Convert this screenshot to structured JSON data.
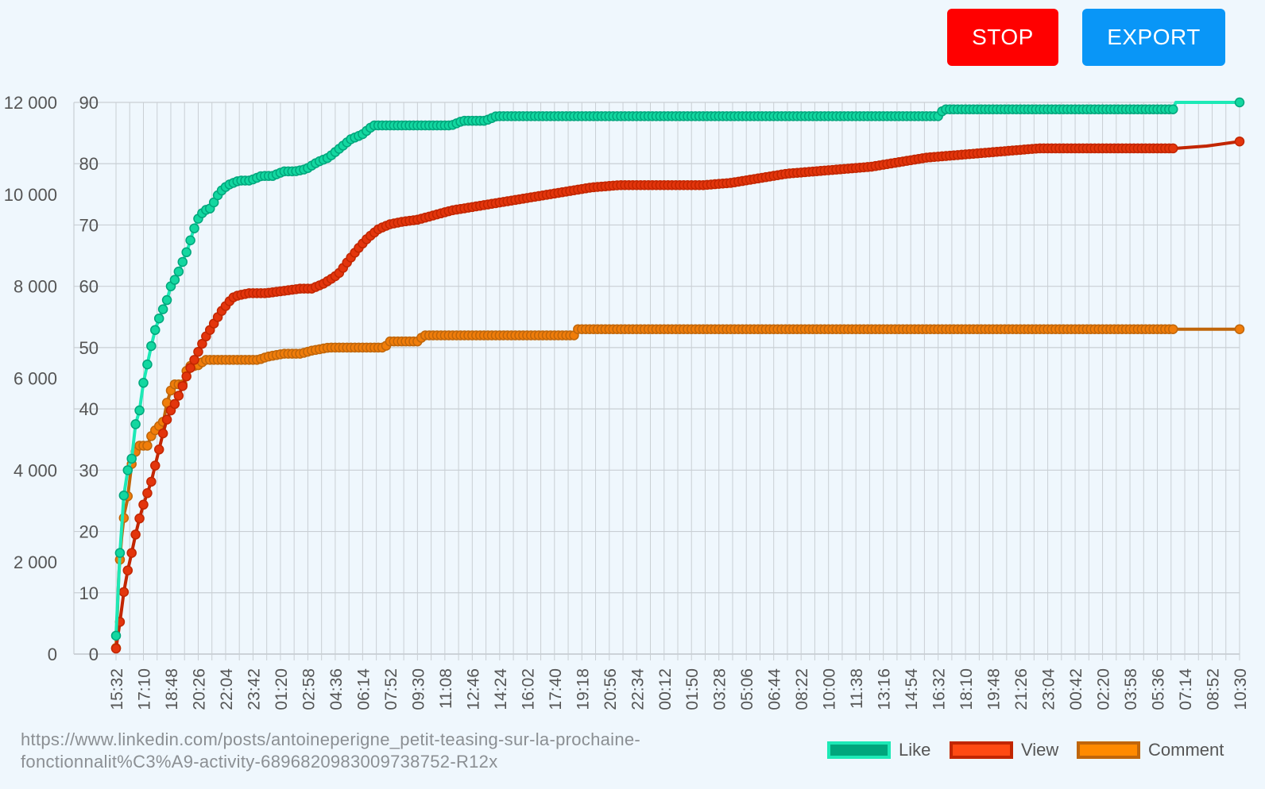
{
  "controls": {
    "stop_label": "STOP",
    "export_label": "EXPORT"
  },
  "footer": {
    "url": "https://www.linkedin.com/posts/antoineperigne_petit-teasing-sur-la-prochaine-fonctionnalit%C3%A9-activity-6896820983009738752-R12x"
  },
  "colors": {
    "like_line": "#1de9b6",
    "like_fill": "#00a67c",
    "like_point": "#13d7a0",
    "view_line": "#c22600",
    "view_fill": "#ff4a12",
    "view_point": "#e3350c",
    "comment_line": "#c0660a",
    "comment_fill": "#ff8a00",
    "comment_point": "#f07d0a",
    "stop_button": "#ff0000",
    "export_button": "#0996f7"
  },
  "chart_data": {
    "type": "line",
    "title": "",
    "grid": true,
    "legend_position": "bottom-right",
    "x_tick_labels": [
      "15:32",
      "17:10",
      "18:48",
      "20:26",
      "22:04",
      "23:42",
      "01:20",
      "02:58",
      "04:36",
      "06:14",
      "07:52",
      "09:30",
      "11:08",
      "12:46",
      "14:24",
      "16:02",
      "17:40",
      "19:18",
      "20:56",
      "22:34",
      "00:12",
      "01:50",
      "03:28",
      "05:06",
      "06:44",
      "08:22",
      "10:00",
      "11:38",
      "13:16",
      "14:54",
      "16:32",
      "18:10",
      "19:48",
      "21:26",
      "23:04",
      "00:42",
      "02:20",
      "03:58",
      "05:36",
      "07:14",
      "08:52",
      "10:30"
    ],
    "x_axis": {
      "unit": "minutes",
      "start_label": "15:32",
      "end_label": "10:30",
      "range": [
        0,
        4018
      ],
      "tick_step": 98
    },
    "y_left": {
      "range": [
        0,
        12000
      ],
      "ticks": [
        "0",
        "2 000",
        "4 000",
        "6 000",
        "8 000",
        "10 000",
        "12 000"
      ]
    },
    "y_right": {
      "range": [
        0,
        90
      ],
      "ticks": [
        "0",
        "10",
        "20",
        "30",
        "40",
        "50",
        "60",
        "70",
        "80",
        "90"
      ]
    },
    "series": [
      {
        "name": "Like",
        "axis": "left",
        "points": [
          [
            0,
            400
          ],
          [
            14,
            2200
          ],
          [
            28,
            3450
          ],
          [
            42,
            4000
          ],
          [
            56,
            4250
          ],
          [
            70,
            5000
          ],
          [
            84,
            5300
          ],
          [
            98,
            5900
          ],
          [
            112,
            6300
          ],
          [
            126,
            6700
          ],
          [
            140,
            7050
          ],
          [
            154,
            7300
          ],
          [
            168,
            7500
          ],
          [
            182,
            7700
          ],
          [
            196,
            8000
          ],
          [
            216,
            8200
          ],
          [
            236,
            8500
          ],
          [
            256,
            8800
          ],
          [
            276,
            9200
          ],
          [
            296,
            9500
          ],
          [
            316,
            9650
          ],
          [
            340,
            9700
          ],
          [
            360,
            9950
          ],
          [
            380,
            10100
          ],
          [
            400,
            10200
          ],
          [
            440,
            10300
          ],
          [
            480,
            10300
          ],
          [
            520,
            10400
          ],
          [
            560,
            10400
          ],
          [
            600,
            10500
          ],
          [
            640,
            10500
          ],
          [
            680,
            10550
          ],
          [
            720,
            10700
          ],
          [
            760,
            10800
          ],
          [
            800,
            11000
          ],
          [
            840,
            11200
          ],
          [
            880,
            11300
          ],
          [
            920,
            11500
          ],
          [
            960,
            11500
          ],
          [
            1000,
            11500
          ],
          [
            1040,
            11500
          ],
          [
            1080,
            11500
          ],
          [
            1120,
            11500
          ],
          [
            1160,
            11500
          ],
          [
            1200,
            11500
          ],
          [
            1240,
            11600
          ],
          [
            1280,
            11600
          ],
          [
            1320,
            11600
          ],
          [
            1360,
            11700
          ],
          [
            1400,
            11700
          ],
          [
            1600,
            11700
          ],
          [
            1800,
            11700
          ],
          [
            2000,
            11700
          ],
          [
            2200,
            11700
          ],
          [
            2400,
            11700
          ],
          [
            2600,
            11700
          ],
          [
            2800,
            11700
          ],
          [
            2940,
            11700
          ],
          [
            2960,
            11850
          ],
          [
            3200,
            11850
          ],
          [
            3400,
            11850
          ],
          [
            3600,
            11850
          ],
          [
            3780,
            11850
          ],
          [
            3790,
            12000
          ],
          [
            4018,
            12000
          ]
        ]
      },
      {
        "name": "View",
        "axis": "left",
        "points": [
          [
            0,
            120
          ],
          [
            14,
            700
          ],
          [
            28,
            1350
          ],
          [
            42,
            1820
          ],
          [
            56,
            2200
          ],
          [
            70,
            2600
          ],
          [
            84,
            2950
          ],
          [
            98,
            3250
          ],
          [
            112,
            3500
          ],
          [
            126,
            3750
          ],
          [
            140,
            4100
          ],
          [
            154,
            4450
          ],
          [
            168,
            4800
          ],
          [
            182,
            5100
          ],
          [
            196,
            5300
          ],
          [
            216,
            5500
          ],
          [
            236,
            5800
          ],
          [
            256,
            6100
          ],
          [
            276,
            6350
          ],
          [
            296,
            6600
          ],
          [
            316,
            6850
          ],
          [
            336,
            7050
          ],
          [
            356,
            7250
          ],
          [
            376,
            7450
          ],
          [
            396,
            7600
          ],
          [
            416,
            7750
          ],
          [
            436,
            7800
          ],
          [
            476,
            7850
          ],
          [
            536,
            7850
          ],
          [
            600,
            7900
          ],
          [
            660,
            7950
          ],
          [
            700,
            7950
          ],
          [
            740,
            8050
          ],
          [
            780,
            8200
          ],
          [
            800,
            8300
          ],
          [
            830,
            8550
          ],
          [
            870,
            8850
          ],
          [
            900,
            9050
          ],
          [
            940,
            9250
          ],
          [
            980,
            9350
          ],
          [
            1020,
            9400
          ],
          [
            1080,
            9450
          ],
          [
            1140,
            9550
          ],
          [
            1200,
            9650
          ],
          [
            1300,
            9750
          ],
          [
            1400,
            9850
          ],
          [
            1500,
            9950
          ],
          [
            1600,
            10050
          ],
          [
            1700,
            10150
          ],
          [
            1800,
            10200
          ],
          [
            1900,
            10200
          ],
          [
            2000,
            10200
          ],
          [
            2100,
            10200
          ],
          [
            2200,
            10250
          ],
          [
            2300,
            10350
          ],
          [
            2400,
            10450
          ],
          [
            2500,
            10500
          ],
          [
            2600,
            10550
          ],
          [
            2700,
            10600
          ],
          [
            2800,
            10700
          ],
          [
            2900,
            10800
          ],
          [
            3000,
            10850
          ],
          [
            3100,
            10900
          ],
          [
            3200,
            10950
          ],
          [
            3300,
            11000
          ],
          [
            3400,
            11000
          ],
          [
            3500,
            11000
          ],
          [
            3600,
            11000
          ],
          [
            3700,
            11000
          ],
          [
            3790,
            11000
          ],
          [
            3900,
            11050
          ],
          [
            4018,
            11150
          ]
        ]
      },
      {
        "name": "Comment",
        "axis": "right",
        "points": [
          [
            0,
            1
          ],
          [
            10,
            13
          ],
          [
            20,
            19
          ],
          [
            30,
            23
          ],
          [
            40,
            25
          ],
          [
            56,
            31
          ],
          [
            70,
            33
          ],
          [
            84,
            34
          ],
          [
            112,
            34
          ],
          [
            130,
            36
          ],
          [
            150,
            37
          ],
          [
            170,
            38
          ],
          [
            182,
            41
          ],
          [
            196,
            43
          ],
          [
            210,
            44
          ],
          [
            240,
            44
          ],
          [
            250,
            46
          ],
          [
            260,
            47
          ],
          [
            290,
            47
          ],
          [
            320,
            48
          ],
          [
            360,
            48
          ],
          [
            400,
            48
          ],
          [
            440,
            48
          ],
          [
            470,
            48
          ],
          [
            510,
            48
          ],
          [
            540,
            48.5
          ],
          [
            600,
            49
          ],
          [
            660,
            49
          ],
          [
            700,
            49.5
          ],
          [
            760,
            50
          ],
          [
            860,
            50
          ],
          [
            960,
            50
          ],
          [
            980,
            51
          ],
          [
            1080,
            51
          ],
          [
            1100,
            52
          ],
          [
            1200,
            52
          ],
          [
            1300,
            52
          ],
          [
            1400,
            52
          ],
          [
            1500,
            52
          ],
          [
            1600,
            52
          ],
          [
            1640,
            52
          ],
          [
            1650,
            53
          ],
          [
            1800,
            53
          ],
          [
            2000,
            53
          ],
          [
            2400,
            53
          ],
          [
            2800,
            53
          ],
          [
            3200,
            53
          ],
          [
            3600,
            53
          ],
          [
            3790,
            53
          ],
          [
            4018,
            53
          ]
        ]
      }
    ]
  }
}
